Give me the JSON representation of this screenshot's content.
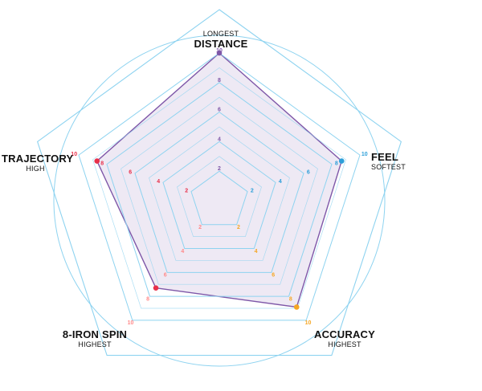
{
  "chart_data": {
    "type": "radar",
    "title": "",
    "range": [
      0,
      10
    ],
    "ticks": [
      "2",
      "4",
      "6",
      "8",
      "10"
    ],
    "axes": [
      {
        "name": "DISTANCE",
        "sub": "LONGEST",
        "color": "#7e57a8",
        "value": 10
      },
      {
        "name": "FEEL",
        "sub": "SOFTEST",
        "color": "#2d9fd9",
        "value": 8.7
      },
      {
        "name": "ACCURACY",
        "sub": "HIGHEST",
        "color": "#f5a623",
        "value": 8.9
      },
      {
        "name": "8-IRON SPIN",
        "sub": "HIGHEST",
        "color": "#ff8a8a",
        "value": 7.3
      },
      {
        "name": "TRAJECTORY",
        "sub": "HIGH",
        "color": "#e8304a",
        "value": 8.7
      }
    ],
    "series": [
      {
        "values": [
          10,
          8.7,
          8.9,
          7.3,
          8.7
        ],
        "color": "#7e57a8"
      }
    ],
    "grid": true,
    "legend": "none"
  }
}
